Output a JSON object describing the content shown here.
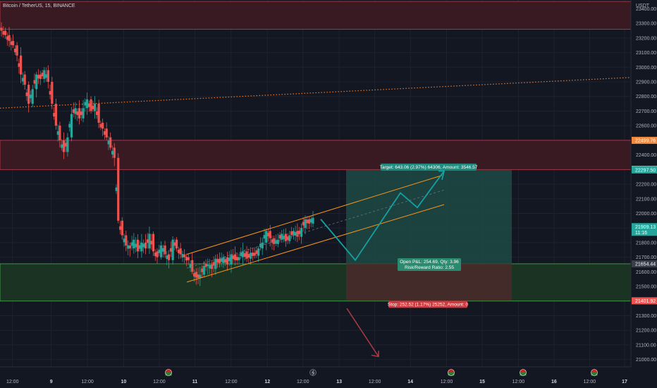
{
  "header": {
    "symbol_title": "Bitcoin / TetherUS, 15, BINANCE",
    "currency": "USDT"
  },
  "colors": {
    "background": "#131722",
    "grid": "#1e2230",
    "up": "#26a69a",
    "down": "#ef5350",
    "channel": "#f7931a",
    "trendline": "#e07b39",
    "target_zone": "#1f4a45",
    "stop_zone": "#4a2a2a",
    "resistance_zone": "#3a1a22",
    "support_zone": "#1a3322",
    "arrow_down": "#b03a48",
    "path": "#14a0a0"
  },
  "chart_data": {
    "type": "candlestick",
    "ylim": [
      20950,
      23460
    ],
    "y_ticks": [
      21000,
      21100,
      21200,
      21300,
      21400,
      21500,
      21600,
      21700,
      21800,
      21900,
      22000,
      22100,
      22200,
      22300,
      22400,
      22500,
      22600,
      22700,
      22800,
      22900,
      23000,
      23100,
      23200,
      23300,
      23400
    ],
    "y_tick_labels": [
      "21000.00",
      "21100.00",
      "21200.00",
      "21300.00",
      "21400.00",
      "21500.00",
      "21600.00",
      "21700.00",
      "21800.00",
      "21900.00",
      "22000.00",
      "22100.00",
      "22200.00",
      "22300.00",
      "22400.00",
      "22500.00",
      "22600.00",
      "22700.00",
      "22800.00",
      "22900.00",
      "23000.00",
      "23100.00",
      "23200.00",
      "23300.00",
      "23400.00"
    ],
    "x_ticks": [
      {
        "label": "12:00",
        "t": 0.02,
        "day": false
      },
      {
        "label": "9",
        "t": 0.082,
        "day": true
      },
      {
        "label": "12:00",
        "t": 0.14,
        "day": false
      },
      {
        "label": "10",
        "t": 0.198,
        "day": true
      },
      {
        "label": "12:00",
        "t": 0.255,
        "day": false
      },
      {
        "label": "11",
        "t": 0.312,
        "day": true
      },
      {
        "label": "12:00",
        "t": 0.37,
        "day": false
      },
      {
        "label": "12",
        "t": 0.428,
        "day": true
      },
      {
        "label": "12:00",
        "t": 0.485,
        "day": false
      },
      {
        "label": "13",
        "t": 0.543,
        "day": true
      },
      {
        "label": "12:00",
        "t": 0.6,
        "day": false
      },
      {
        "label": "14",
        "t": 0.657,
        "day": true
      },
      {
        "label": "12:00",
        "t": 0.715,
        "day": false
      },
      {
        "label": "15",
        "t": 0.772,
        "day": true
      },
      {
        "label": "12:00",
        "t": 0.83,
        "day": false
      },
      {
        "label": "16",
        "t": 0.887,
        "day": true
      },
      {
        "label": "12:00",
        "t": 0.944,
        "day": false
      },
      {
        "label": "17",
        "t": 1.0,
        "day": true
      }
    ],
    "candles_close_path": [
      23250,
      23220,
      23180,
      23150,
      23080,
      22950,
      22880,
      22750,
      22850,
      22950,
      22920,
      22980,
      22900,
      22750,
      22600,
      22500,
      22420,
      22520,
      22680,
      22720,
      22650,
      22720,
      22780,
      22700,
      22750,
      22620,
      22580,
      22520,
      22450,
      22380,
      21950,
      21850,
      21780,
      21760,
      21820,
      21740,
      21800,
      21760,
      21860,
      21740,
      21700,
      21780,
      21720,
      21680,
      21820,
      21760,
      21720,
      21700,
      21680,
      21600,
      21560,
      21580,
      21640,
      21650,
      21620,
      21690,
      21660,
      21700,
      21650,
      21720,
      21680,
      21700,
      21740,
      21690,
      21730,
      21710,
      21760,
      21800,
      21880,
      21830,
      21790,
      21820,
      21860,
      21810,
      21850,
      21880,
      21840,
      21900,
      21960,
      21930,
      21970
    ],
    "zones": [
      {
        "name": "resistance-top",
        "from": 23260,
        "to": 23450
      },
      {
        "name": "resistance-mid",
        "from": 22300,
        "to": 22500
      }
    ],
    "support_zone": {
      "from": 21400,
      "to": 21655
    },
    "price_tags": [
      {
        "value": 22499.76,
        "label": "22499.76",
        "color": "#f0883e"
      },
      {
        "value": 22301.74,
        "label": "22301.74",
        "color": "#f0883e"
      },
      {
        "value": 22297.5,
        "label": "22297.50",
        "color": "#26a69a"
      },
      {
        "value": 21909.13,
        "label": "21909.13",
        "sub": "11:16",
        "color": "#26a69a"
      },
      {
        "value": 21654.44,
        "label": "21654.44",
        "color": "#3a3e4a"
      },
      {
        "value": 21401.92,
        "label": "21401.92",
        "color": "#ef5350"
      }
    ],
    "position": {
      "entry": 21654.44,
      "target": 22297.5,
      "stop": 21401.92,
      "target_label": "Target: 643.06 (2.97%) 64306, Amount: 3546.57",
      "open_label_1": "Open P&L: 254.69, Qty: 3.96",
      "open_label_2": "Risk/Reward Ratio: 2.55",
      "stop_label": "Stop: 252.52 (1.17%) 25252, Amount: 0"
    }
  }
}
